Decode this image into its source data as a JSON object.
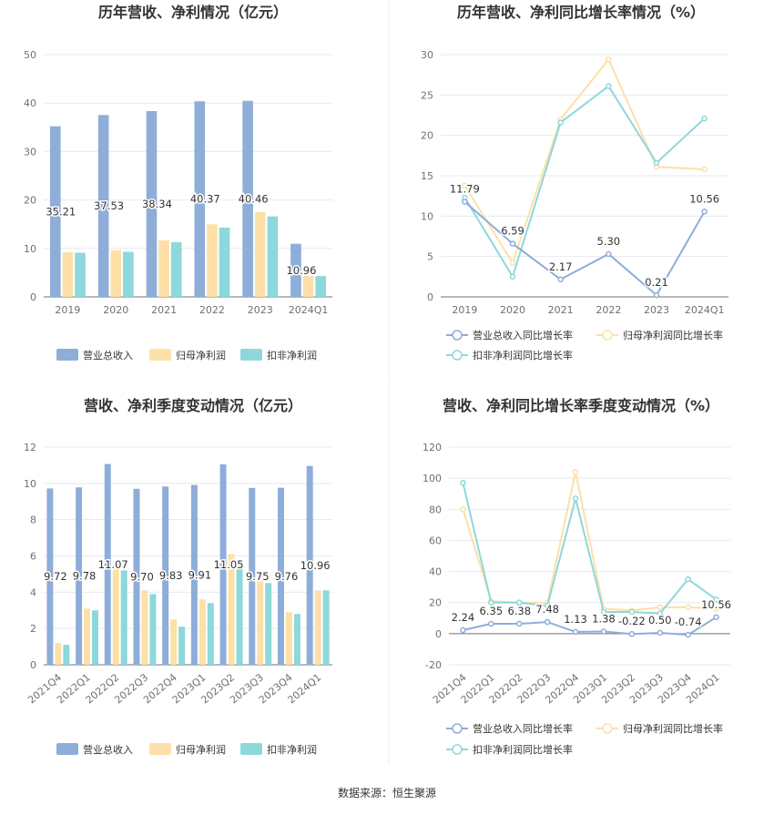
{
  "source": "数据来源：恒生聚源",
  "colors": {
    "revenue": "#8eadd9",
    "netprofit": "#fde0a8",
    "deducted": "#8dd8da",
    "rev_line": "#8eadd9",
    "np_line": "#fde0a8",
    "ded_line": "#8dd8da"
  },
  "chart_data": [
    {
      "type": "bar",
      "title": "历年营收、净利情况（亿元）",
      "categories": [
        "2019",
        "2020",
        "2021",
        "2022",
        "2023",
        "2024Q1"
      ],
      "ylim": [
        0,
        50
      ],
      "yticks": [
        0,
        10,
        20,
        30,
        40,
        50
      ],
      "series": [
        {
          "name": "营业总收入",
          "values": [
            35.21,
            37.53,
            38.34,
            40.37,
            40.46,
            10.96
          ]
        },
        {
          "name": "归母净利润",
          "values": [
            9.2,
            9.6,
            11.7,
            15.0,
            17.5,
            4.3
          ]
        },
        {
          "name": "扣非净利润",
          "values": [
            9.1,
            9.3,
            11.3,
            14.3,
            16.6,
            4.3
          ]
        }
      ],
      "data_labels": [
        "35.21",
        "37.53",
        "38.34",
        "40.37",
        "40.46",
        "10.96"
      ]
    },
    {
      "type": "line",
      "title": "历年营收、净利同比增长率情况（%）",
      "categories": [
        "2019",
        "2020",
        "2021",
        "2022",
        "2023",
        "2024Q1"
      ],
      "ylim": [
        0,
        30
      ],
      "yticks": [
        0,
        5,
        10,
        15,
        20,
        25,
        30
      ],
      "series": [
        {
          "name": "营业总收入同比增长率",
          "values": [
            11.79,
            6.59,
            2.17,
            5.3,
            0.21,
            10.56
          ]
        },
        {
          "name": "归母净利润同比增长率",
          "values": [
            13.8,
            4.2,
            22.0,
            29.4,
            16.1,
            15.8
          ]
        },
        {
          "name": "扣非净利润同比增长率",
          "values": [
            12.3,
            2.5,
            21.6,
            26.1,
            16.6,
            22.1
          ]
        }
      ],
      "data_labels": [
        "11.79",
        "6.59",
        "2.17",
        "5.30",
        "0.21",
        "10.56"
      ]
    },
    {
      "type": "bar",
      "title": "营收、净利季度变动情况（亿元）",
      "categories": [
        "2021Q4",
        "2022Q1",
        "2022Q2",
        "2022Q3",
        "2022Q4",
        "2023Q1",
        "2023Q2",
        "2023Q3",
        "2023Q4",
        "2024Q1"
      ],
      "ylim": [
        0,
        12
      ],
      "yticks": [
        0,
        2,
        4,
        6,
        8,
        10,
        12
      ],
      "series": [
        {
          "name": "营业总收入",
          "values": [
            9.72,
            9.78,
            11.07,
            9.7,
            9.83,
            9.91,
            11.05,
            9.75,
            9.76,
            10.96
          ]
        },
        {
          "name": "归母净利润",
          "values": [
            1.2,
            3.1,
            5.3,
            4.1,
            2.5,
            3.6,
            6.1,
            4.6,
            2.9,
            4.1
          ]
        },
        {
          "name": "扣非净利润",
          "values": [
            1.1,
            3.0,
            5.2,
            3.9,
            2.1,
            3.4,
            5.8,
            4.5,
            2.8,
            4.1
          ]
        }
      ],
      "data_labels": [
        "9.72",
        "9.78",
        "11.07",
        "9.70",
        "9.83",
        "9.91",
        "11.05",
        "9.75",
        "9.76",
        "10.96"
      ]
    },
    {
      "type": "line",
      "title": "营收、净利同比增长率季度变动情况（%）",
      "categories": [
        "2021Q4",
        "2022Q1",
        "2022Q2",
        "2022Q3",
        "2022Q4",
        "2023Q1",
        "2023Q2",
        "2023Q3",
        "2023Q4",
        "2024Q1"
      ],
      "ylim": [
        -20,
        120
      ],
      "yticks": [
        -20,
        0,
        20,
        40,
        60,
        80,
        100,
        120
      ],
      "series": [
        {
          "name": "营业总收入同比增长率",
          "values": [
            2.24,
            6.35,
            6.38,
            7.48,
            1.13,
            1.38,
            -0.22,
            0.5,
            -0.74,
            10.56
          ]
        },
        {
          "name": "归母净利润同比增长率",
          "values": [
            80,
            21,
            20,
            20,
            104,
            16,
            15,
            17,
            17,
            16
          ]
        },
        {
          "name": "扣非净利润同比增长率",
          "values": [
            97,
            20,
            20,
            18,
            87,
            14,
            14,
            13,
            35,
            22
          ]
        }
      ],
      "data_labels": [
        "2.24",
        "6.35",
        "6.38",
        "7.48",
        "1.13",
        "1.38",
        "-0.22",
        "0.50",
        "-0.74",
        "10.56"
      ]
    }
  ]
}
